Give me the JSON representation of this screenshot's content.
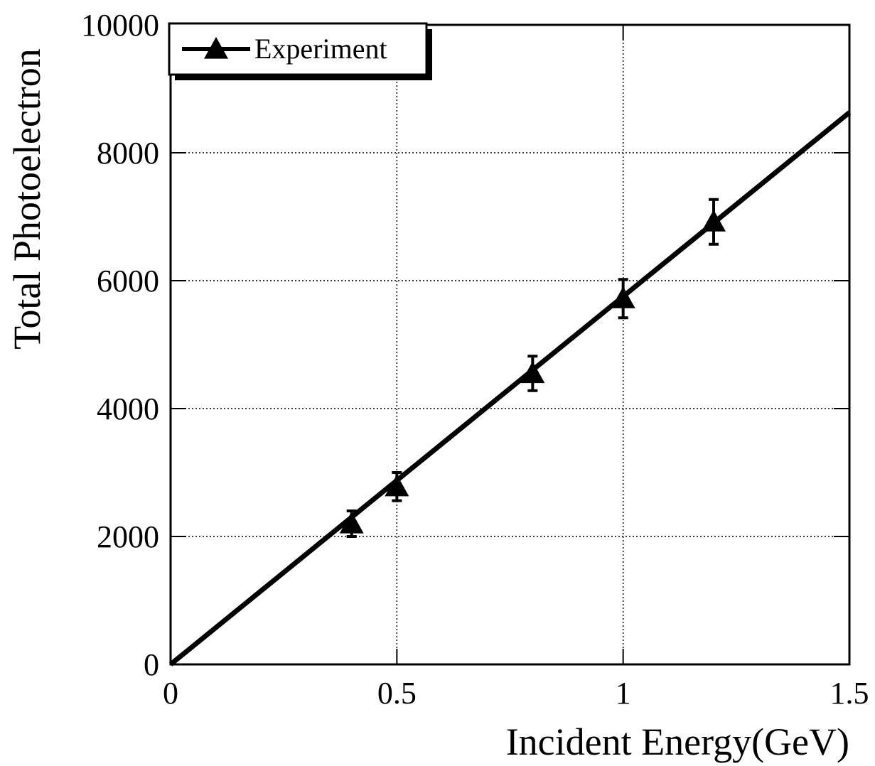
{
  "chart_data": {
    "type": "scatter",
    "xlabel": "Incident Energy(GeV)",
    "ylabel": "Total Photoelectron",
    "series": [
      {
        "name": "Experiment",
        "color": "#000000",
        "x": [
          0.4,
          0.5,
          0.8,
          1.0,
          1.2
        ],
        "y": [
          2200,
          2780,
          4550,
          5720,
          6920
        ],
        "errors": [
          200,
          220,
          270,
          300,
          350
        ]
      }
    ],
    "fit": {
      "x": [
        0,
        1.5
      ],
      "y": [
        0,
        8630
      ]
    },
    "xlim": [
      0,
      1.5
    ],
    "xticks": [
      0,
      0.5,
      1,
      1.5
    ],
    "ylim": [
      0,
      10000
    ],
    "yticks": [
      0,
      2000,
      4000,
      6000,
      8000,
      10000
    ],
    "grid": true,
    "legend": "upper left"
  }
}
